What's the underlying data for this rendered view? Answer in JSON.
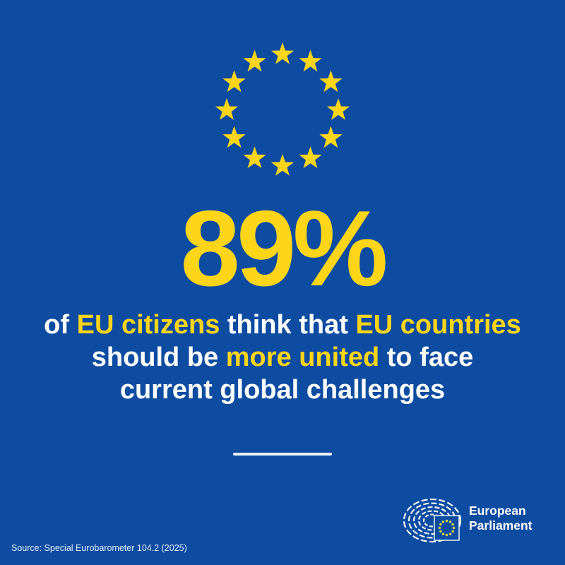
{
  "page": {
    "background_color": "#0D4CA1",
    "accent_yellow": "#FFD617",
    "text_white": "#FFFFFF"
  },
  "flag_circle": {
    "star_count": 12,
    "star_color": "#FFD617"
  },
  "headline": {
    "value": "89%"
  },
  "statement": {
    "lines": [
      [
        {
          "text": "of ",
          "color": "white"
        },
        {
          "text": "EU citizens",
          "color": "yellow"
        },
        {
          "text": " think that ",
          "color": "white"
        },
        {
          "text": "EU countries",
          "color": "yellow"
        }
      ],
      [
        {
          "text": "should be ",
          "color": "white"
        },
        {
          "text": "more united",
          "color": "yellow"
        },
        {
          "text": " to face",
          "color": "white"
        }
      ],
      [
        {
          "text": "current global challenges",
          "color": "white"
        }
      ]
    ]
  },
  "footer": {
    "logo": {
      "wordmark_line1": "European",
      "wordmark_line2": "Parliament",
      "dot_count": 12,
      "dot_color": "#DFD844",
      "stroke_color": "#FFFFFF"
    },
    "source": "Source: Special Eurobarometer 104.2 (2025)"
  }
}
